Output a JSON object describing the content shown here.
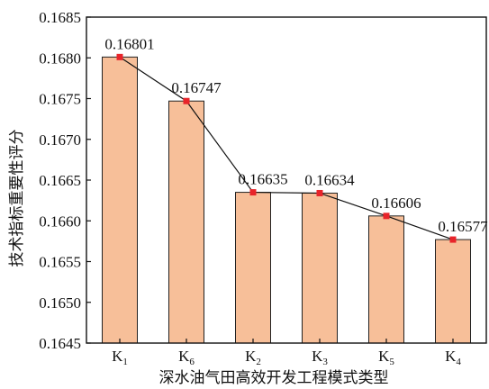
{
  "chart_data": {
    "type": "bar",
    "categories": [
      "K1",
      "K6",
      "K2",
      "K3",
      "K5",
      "K4"
    ],
    "category_labels": [
      {
        "base": "K",
        "sub": "1"
      },
      {
        "base": "K",
        "sub": "6"
      },
      {
        "base": "K",
        "sub": "2"
      },
      {
        "base": "K",
        "sub": "3"
      },
      {
        "base": "K",
        "sub": "5"
      },
      {
        "base": "K",
        "sub": "4"
      }
    ],
    "values": [
      0.16801,
      0.16747,
      0.16635,
      0.16634,
      0.16606,
      0.16577
    ],
    "value_labels": [
      "0.16801",
      "0.16747",
      "0.16635",
      "0.16634",
      "0.16606",
      "0.16577"
    ],
    "xlabel": "深水油气田高效开发工程模式类型",
    "ylabel": "技术指标重要性评分",
    "ylim": [
      0.1645,
      0.1685
    ],
    "yticks": [
      "0.1645",
      "0.1650",
      "0.1655",
      "0.1660",
      "0.1665",
      "0.1670",
      "0.1675",
      "0.1680",
      "0.1685"
    ],
    "overlay_line": true,
    "grid": false,
    "colors": {
      "bar_fill": "#F7BF99",
      "bar_stroke": "#222222",
      "line": "#111111",
      "marker": "#E8242A"
    }
  }
}
